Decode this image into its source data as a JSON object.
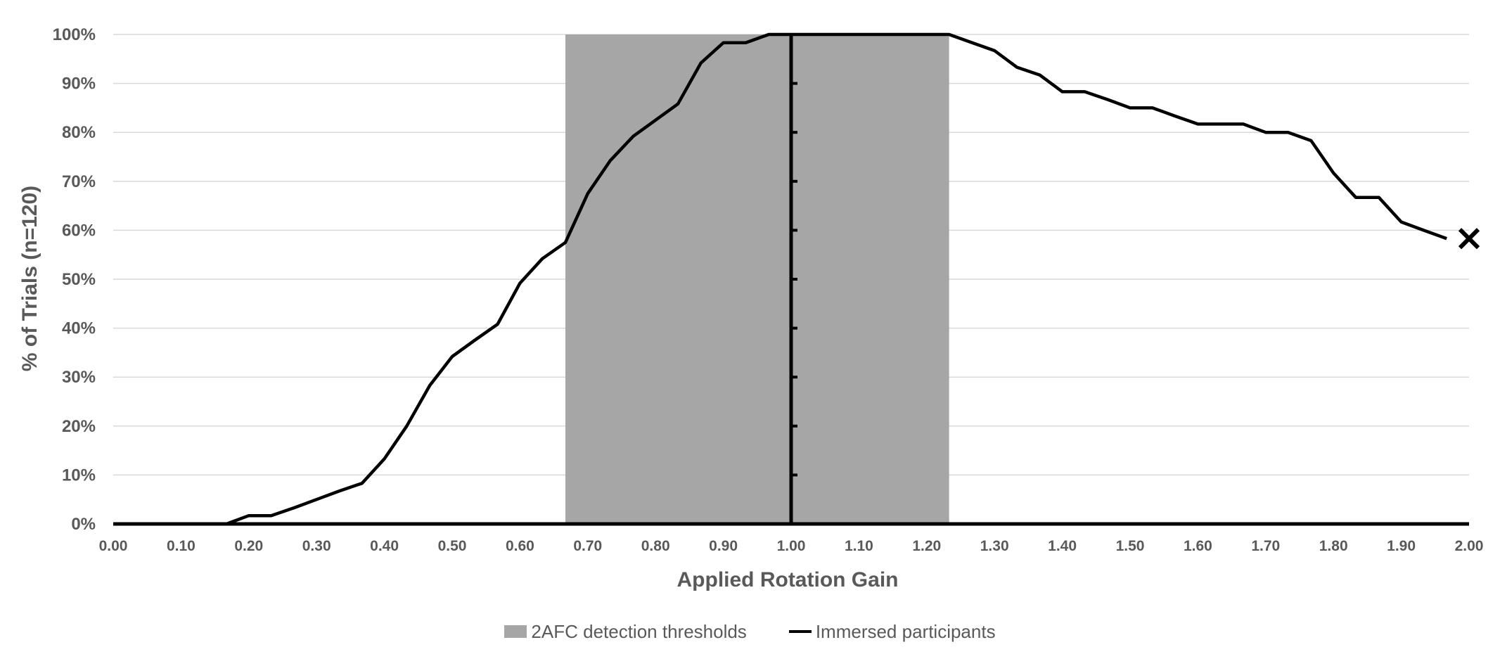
{
  "chart_data": {
    "type": "line",
    "xlabel": "Applied Rotation Gain",
    "ylabel": "% of Trials (n=120)",
    "xlim": [
      0,
      2
    ],
    "ylim": [
      0,
      100
    ],
    "x_ticks": [
      "0.00",
      "0.10",
      "0.20",
      "0.30",
      "0.40",
      "0.50",
      "0.60",
      "0.70",
      "0.80",
      "0.90",
      "1.00",
      "1.10",
      "1.20",
      "1.30",
      "1.40",
      "1.50",
      "1.60",
      "1.70",
      "1.80",
      "1.90",
      "2.00"
    ],
    "y_ticks": [
      "0%",
      "10%",
      "20%",
      "30%",
      "40%",
      "50%",
      "60%",
      "70%",
      "80%",
      "90%",
      "100%"
    ],
    "grid": "horizontal",
    "legend_position": "bottom",
    "threshold_band": {
      "name": "2AFC detection thresholds",
      "x_start": 0.667,
      "x_end": 1.233,
      "color": "#a6a6a6"
    },
    "series": [
      {
        "name": "Immersed participants",
        "color": "#000000",
        "x": [
          0.0,
          0.033,
          0.067,
          0.1,
          0.133,
          0.167,
          0.2,
          0.233,
          0.267,
          0.3,
          0.333,
          0.367,
          0.4,
          0.433,
          0.467,
          0.5,
          0.533,
          0.567,
          0.6,
          0.633,
          0.667,
          0.7,
          0.733,
          0.767,
          0.8,
          0.833,
          0.867,
          0.9,
          0.933,
          0.967,
          1.0,
          1.033,
          1.067,
          1.1,
          1.133,
          1.167,
          1.2,
          1.233,
          1.267,
          1.3,
          1.333,
          1.367,
          1.4,
          1.433,
          1.467,
          1.5,
          1.533,
          1.567,
          1.6,
          1.633,
          1.667,
          1.7,
          1.733,
          1.767,
          1.8,
          1.833,
          1.867,
          1.9,
          1.933,
          1.967
        ],
        "y": [
          0,
          0,
          0,
          0,
          0,
          0,
          1.7,
          1.7,
          3.3,
          5,
          6.7,
          8.3,
          13.3,
          20,
          28.3,
          34.2,
          37.5,
          40.8,
          49.2,
          54.2,
          57.5,
          67.5,
          74.2,
          79.2,
          82.5,
          85.8,
          94.2,
          98.3,
          98.3,
          100,
          100,
          100,
          100,
          100,
          100,
          100,
          100,
          100,
          98.3,
          96.7,
          93.3,
          91.7,
          88.3,
          88.3,
          86.7,
          85,
          85,
          83.3,
          81.7,
          81.7,
          81.7,
          80,
          80,
          78.3,
          71.7,
          66.7,
          66.7,
          61.7,
          60,
          58.3
        ]
      }
    ],
    "reference_line_x": 1.0,
    "end_marker": {
      "x": 2.0,
      "y": 58.3,
      "symbol": "x"
    }
  },
  "legend": {
    "band_label": "2AFC detection thresholds",
    "line_label": "Immersed participants"
  }
}
